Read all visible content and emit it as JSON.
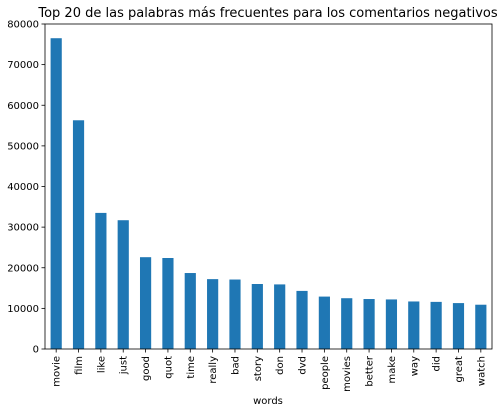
{
  "chart_data": {
    "type": "bar",
    "title": "Top 20 de las palabras más frecuentes para los comentarios negativos",
    "xlabel": "words",
    "ylabel": "",
    "categories": [
      "movie",
      "film",
      "like",
      "just",
      "good",
      "quot",
      "time",
      "really",
      "bad",
      "story",
      "don",
      "dvd",
      "people",
      "movies",
      "better",
      "make",
      "way",
      "did",
      "great",
      "watch"
    ],
    "values": [
      76500,
      56300,
      33500,
      31700,
      22600,
      22400,
      18700,
      17200,
      17100,
      16000,
      15900,
      14300,
      12900,
      12500,
      12300,
      12200,
      11700,
      11600,
      11300,
      10900
    ],
    "ylim": [
      0,
      80000
    ],
    "yticks": [
      0,
      10000,
      20000,
      30000,
      40000,
      50000,
      60000,
      70000,
      80000
    ],
    "bar_color": "#1f77b4",
    "grid": false,
    "legend": "none"
  }
}
